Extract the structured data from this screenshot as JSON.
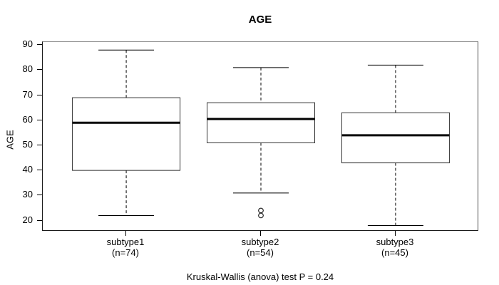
{
  "chart_data": {
    "type": "boxplot",
    "title": "AGE",
    "ylabel": "AGE",
    "xlabel": "",
    "footer": "Kruskal-Wallis (anova) test P = 0.24",
    "ylim": [
      15.6,
      91.2
    ],
    "yticks": [
      20,
      30,
      40,
      50,
      60,
      70,
      80,
      90
    ],
    "grid": false,
    "legend": "none",
    "box_fill_color": "#ffffff",
    "box_stroke_color": "#333333",
    "median_color": "#000000",
    "groups": [
      {
        "label": "subtype1",
        "sublabel": "(n=74)",
        "lower_whisker": 22,
        "q1": 40,
        "median": 59,
        "q3": 69,
        "upper_whisker": 88,
        "outliers": []
      },
      {
        "label": "subtype2",
        "sublabel": "(n=54)",
        "lower_whisker": 31,
        "q1": 51,
        "median": 60.5,
        "q3": 67,
        "upper_whisker": 81,
        "outliers": [
          24,
          22
        ]
      },
      {
        "label": "subtype3",
        "sublabel": "(n=45)",
        "lower_whisker": 18,
        "q1": 43,
        "median": 54,
        "q3": 63,
        "upper_whisker": 82,
        "outliers": []
      }
    ]
  }
}
